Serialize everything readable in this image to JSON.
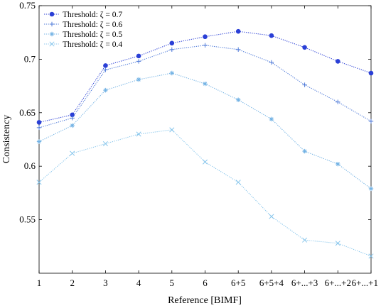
{
  "chart_data": {
    "type": "line",
    "title": "",
    "xlabel": "Reference [BIMF]",
    "ylabel": "Consistency",
    "categories": [
      "1",
      "2",
      "3",
      "4",
      "5",
      "6",
      "6+5",
      "6+5+4",
      "6+...+3",
      "6+...+2",
      "6+...+1"
    ],
    "ylim": [
      0.5,
      0.75
    ],
    "yticks": [
      0.55,
      0.6,
      0.65,
      0.7,
      0.75
    ],
    "ytick_labels": [
      "0.55",
      "0.6",
      "0.65",
      "0.7",
      "0.75"
    ],
    "grid": false,
    "legend_position": "top-left",
    "series": [
      {
        "name": "Threshold: ζ = 0.7",
        "color": "#2a3fd6",
        "marker": "circle",
        "values": [
          0.641,
          0.648,
          0.694,
          0.703,
          0.715,
          0.721,
          0.726,
          0.722,
          0.711,
          0.698,
          0.687
        ]
      },
      {
        "name": "Threshold: ζ = 0.6",
        "color": "#4c78d8",
        "marker": "plus",
        "values": [
          0.636,
          0.645,
          0.69,
          0.698,
          0.709,
          0.713,
          0.709,
          0.697,
          0.676,
          0.66,
          0.642
        ]
      },
      {
        "name": "Threshold: ζ = 0.5",
        "color": "#72b2e4",
        "marker": "asterisk",
        "values": [
          0.623,
          0.638,
          0.671,
          0.681,
          0.687,
          0.677,
          0.662,
          0.644,
          0.614,
          0.602,
          0.579
        ]
      },
      {
        "name": "Threshold: ζ = 0.4",
        "color": "#88c6ec",
        "marker": "x",
        "values": [
          0.585,
          0.612,
          0.621,
          0.63,
          0.634,
          0.604,
          0.585,
          0.553,
          0.531,
          0.528,
          0.516
        ]
      }
    ]
  }
}
